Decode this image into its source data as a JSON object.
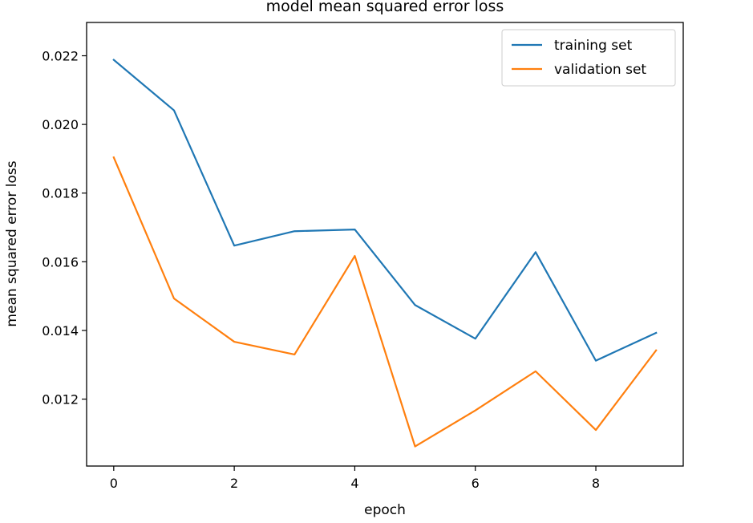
{
  "chart_data": {
    "type": "line",
    "title": "model mean squared error loss",
    "xlabel": "epoch",
    "ylabel": "mean squared error loss",
    "x": [
      0,
      1,
      2,
      3,
      4,
      5,
      6,
      7,
      8,
      9
    ],
    "xlim": [
      -0.45,
      9.45
    ],
    "ylim": [
      0.01005,
      0.02297
    ],
    "xticks": [
      0,
      2,
      4,
      6,
      8
    ],
    "xtick_labels": [
      "0",
      "2",
      "4",
      "6",
      "8"
    ],
    "yticks": [
      0.012,
      0.014,
      0.016,
      0.018,
      0.02,
      0.022
    ],
    "ytick_labels": [
      "0.012",
      "0.014",
      "0.016",
      "0.018",
      "0.020",
      "0.022"
    ],
    "grid": false,
    "legend_position": "upper right",
    "series": [
      {
        "name": "training set",
        "color": "#1f77b4",
        "values": [
          0.02188,
          0.02041,
          0.01647,
          0.01689,
          0.01694,
          0.01474,
          0.01376,
          0.01628,
          0.01312,
          0.01393
        ]
      },
      {
        "name": "validation set",
        "color": "#ff7f0e",
        "values": [
          0.01904,
          0.01493,
          0.01367,
          0.0133,
          0.01617,
          0.01062,
          0.01167,
          0.01281,
          0.0111,
          0.01342
        ]
      }
    ]
  }
}
